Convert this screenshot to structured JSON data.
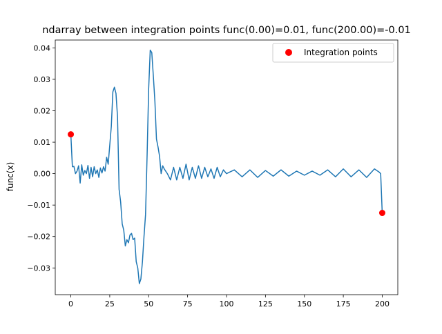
{
  "chart_data": {
    "type": "line",
    "title": "ndarray between integration points func(0.00)=0.01, func(200.00)=-0.01",
    "xlabel": "",
    "ylabel": "func(x)",
    "xlim": [
      -10,
      210
    ],
    "ylim": [
      -0.0385,
      0.0425
    ],
    "x_ticks": [
      0,
      25,
      50,
      75,
      100,
      125,
      150,
      175,
      200
    ],
    "y_ticks": [
      -0.03,
      -0.02,
      -0.01,
      0.0,
      0.01,
      0.02,
      0.03,
      0.04
    ],
    "x_tick_labels": [
      "0",
      "25",
      "50",
      "75",
      "100",
      "125",
      "150",
      "175",
      "200"
    ],
    "y_tick_labels": [
      "−0.03",
      "−0.02",
      "−0.01",
      "0.00",
      "0.01",
      "0.02",
      "0.03",
      "0.04"
    ],
    "grid": false,
    "legend_position": "upper-right",
    "series": [
      {
        "type": "line",
        "color": "#1f77b4",
        "x": [
          0,
          1,
          2,
          3,
          4,
          5,
          6,
          7,
          8,
          9,
          10,
          11,
          12,
          13,
          14,
          15,
          16,
          17,
          18,
          19,
          20,
          21,
          22,
          23,
          24,
          25,
          26,
          27,
          28,
          29,
          30,
          31,
          32,
          33,
          34,
          35,
          36,
          37,
          38,
          39,
          40,
          41,
          42,
          43,
          44,
          45,
          46,
          47,
          48,
          49,
          50,
          51,
          52,
          53,
          54,
          55,
          56,
          57,
          58,
          59,
          60,
          62,
          64,
          66,
          68,
          70,
          72,
          74,
          76,
          78,
          80,
          82,
          84,
          86,
          88,
          90,
          92,
          94,
          96,
          98,
          100,
          105,
          110,
          115,
          120,
          125,
          130,
          135,
          140,
          145,
          150,
          155,
          160,
          165,
          170,
          175,
          180,
          185,
          190,
          195,
          198,
          199,
          200
        ],
        "y": [
          0.0125,
          0.0022,
          0.0023,
          0.0,
          0.0008,
          0.0025,
          -0.003,
          0.0028,
          -0.0005,
          0.001,
          0.0,
          0.0026,
          -0.0015,
          0.002,
          -0.001,
          0.0022,
          0.0,
          0.0012,
          -0.0012,
          0.0018,
          0.0002,
          0.0022,
          0.0008,
          0.0052,
          0.003,
          0.009,
          0.015,
          0.026,
          0.0275,
          0.0255,
          0.018,
          -0.005,
          -0.009,
          -0.016,
          -0.018,
          -0.023,
          -0.021,
          -0.022,
          -0.0195,
          -0.019,
          -0.021,
          -0.0205,
          -0.028,
          -0.03,
          -0.035,
          -0.0335,
          -0.028,
          -0.02,
          -0.013,
          0.006,
          0.027,
          0.0393,
          0.0385,
          0.031,
          0.023,
          0.011,
          0.0085,
          0.0055,
          0.0,
          0.0025,
          0.0015,
          0.0,
          -0.002,
          0.002,
          -0.002,
          0.002,
          -0.0015,
          0.003,
          -0.002,
          0.002,
          -0.0015,
          0.0025,
          -0.0015,
          0.002,
          -0.001,
          0.0015,
          -0.0015,
          0.002,
          -0.001,
          0.0012,
          0.0,
          0.0012,
          -0.001,
          0.0012,
          -0.0012,
          0.001,
          -0.0008,
          0.0012,
          -0.0008,
          0.0008,
          -0.0005,
          0.0008,
          -0.0005,
          0.0012,
          -0.001,
          0.0015,
          -0.001,
          0.0012,
          -0.0012,
          0.0015,
          0.0005,
          0.0,
          -0.0125
        ]
      },
      {
        "name": "Integration points",
        "type": "scatter",
        "color": "#ff0000",
        "x": [
          0,
          200
        ],
        "y": [
          0.0125,
          -0.0125
        ]
      }
    ]
  }
}
